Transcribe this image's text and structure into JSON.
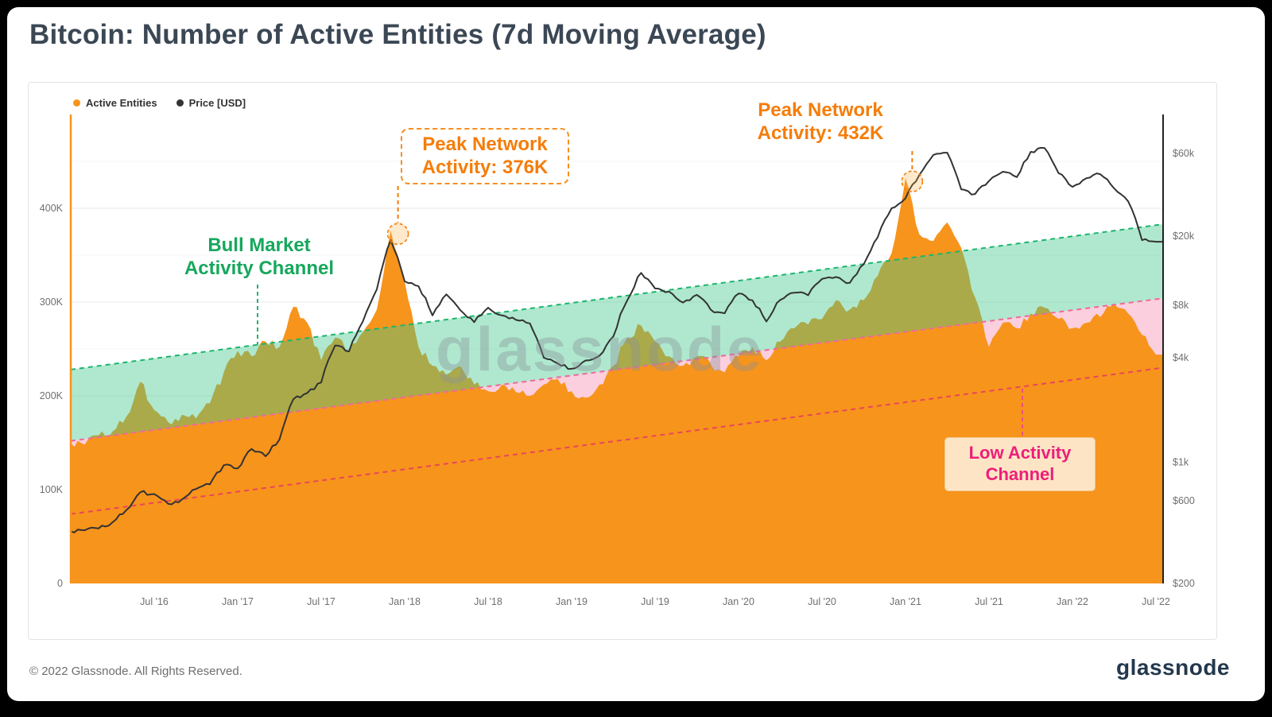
{
  "frame": {
    "title": "Bitcoin: Number of Active Entities (7d Moving Average)"
  },
  "legend": {
    "items": [
      {
        "label": "Active Entities",
        "color": "#f7941c"
      },
      {
        "label": "Price [USD]",
        "color": "#333333"
      }
    ]
  },
  "watermark": "glassnode",
  "annotations": {
    "peak1": {
      "line1": "Peak Network",
      "line2": "Activity: 376K"
    },
    "peak2": {
      "line1": "Peak Network",
      "line2": "Activity: 432K"
    },
    "bull": {
      "line1": "Bull Market",
      "line2": "Activity Channel"
    },
    "low": {
      "line1": "Low Activity",
      "line2": "Channel"
    }
  },
  "footer": {
    "copyright": "© 2022 Glassnode. All Rights Reserved.",
    "brand": "glassnode"
  },
  "chart_data": {
    "type": "area+line",
    "title": "Bitcoin: Number of Active Entities (7d Moving Average)",
    "x_start": "2016-01",
    "x_step": "month",
    "x_tick_labels": [
      "Jul '16",
      "Jan '17",
      "Jul '17",
      "Jan '18",
      "Jul '18",
      "Jan '19",
      "Jul '19",
      "Jan '20",
      "Jul '20",
      "Jan '21",
      "Jul '21",
      "Jan '22",
      "Jul '22"
    ],
    "x_tick_t": [
      2016.5,
      2017.0,
      2017.5,
      2018.0,
      2018.5,
      2019.0,
      2019.5,
      2020.0,
      2020.5,
      2021.0,
      2021.5,
      2022.0,
      2022.5
    ],
    "left_axis": {
      "label": "Active Entities",
      "unit": "thousands",
      "ticks": [
        0,
        100,
        200,
        300,
        400
      ],
      "tick_labels": [
        "0",
        "100K",
        "200K",
        "300K",
        "400K"
      ],
      "top_k": 494
    },
    "right_axis": {
      "label": "Price [USD]",
      "scale": "log",
      "ticks": [
        200,
        600,
        1000,
        4000,
        8000,
        20000,
        60000
      ],
      "tick_labels": [
        "$200",
        "$600",
        "$1k",
        "$4k",
        "$8k",
        "$20k",
        "$60k"
      ]
    },
    "series": [
      {
        "name": "Active Entities",
        "unit": "K",
        "color": "#f7941c",
        "values": [
          150,
          148,
          158,
          162,
          178,
          215,
          185,
          172,
          180,
          176,
          192,
          225,
          248,
          242,
          258,
          252,
          295,
          278,
          238,
          262,
          248,
          268,
          292,
          376,
          322,
          252,
          232,
          222,
          232,
          212,
          205,
          212,
          204,
          200,
          212,
          218,
          205,
          198,
          212,
          232,
          262,
          275,
          258,
          242,
          232,
          242,
          234,
          225,
          242,
          252,
          238,
          258,
          272,
          276,
          282,
          302,
          292,
          302,
          328,
          352,
          432,
          372,
          365,
          385,
          358,
          305,
          252,
          278,
          272,
          288,
          294,
          282,
          272,
          278,
          284,
          298,
          288,
          265,
          244
        ]
      },
      {
        "name": "Price [USD]",
        "unit": "USD",
        "color": "#333333",
        "values": [
          400,
          405,
          415,
          450,
          530,
          670,
          655,
          575,
          610,
          700,
          745,
          960,
          920,
          1190,
          1080,
          1350,
          2300,
          2500,
          2875,
          4700,
          4340,
          6470,
          9900,
          19000,
          11000,
          10300,
          7000,
          9250,
          7500,
          6400,
          7750,
          7000,
          6600,
          6300,
          4000,
          3700,
          3450,
          3850,
          4100,
          5300,
          8550,
          12300,
          10000,
          9600,
          8300,
          9200,
          7550,
          7200,
          9350,
          8550,
          6450,
          8600,
          9450,
          9140,
          11350,
          11650,
          10780,
          13800,
          19700,
          29000,
          33100,
          45200,
          58800,
          60600,
          37300,
          35000,
          41600,
          47100,
          43800,
          61300,
          64400,
          46200,
          38500,
          43200,
          45500,
          37700,
          31800,
          19000,
          18600
        ]
      }
    ],
    "channels": {
      "bull": {
        "name": "Bull Market Activity Channel",
        "upper_start_k": 228,
        "upper_end_k": 383,
        "lower_start_k": 152,
        "lower_end_k": 304,
        "fill_rgba": "rgba(64,199,140,0.42)",
        "line": "#1db56c"
      },
      "low": {
        "name": "Low Activity Channel",
        "upper_start_k": 152,
        "upper_end_k": 304,
        "lower_start_k": 74,
        "lower_end_k": 230,
        "fill": "#fbcfdd",
        "line_top": "#f2679a",
        "line_bottom": "#e8465a"
      }
    },
    "peaks": [
      {
        "label": "Peak Network Activity: 376K",
        "t": 2017.96,
        "value_k": 376
      },
      {
        "label": "Peak Network Activity: 432K",
        "t": 2021.04,
        "value_k": 432
      }
    ],
    "annotation_color": "#f57d0a",
    "grid": "horizontal",
    "legend_position": "top-left"
  }
}
